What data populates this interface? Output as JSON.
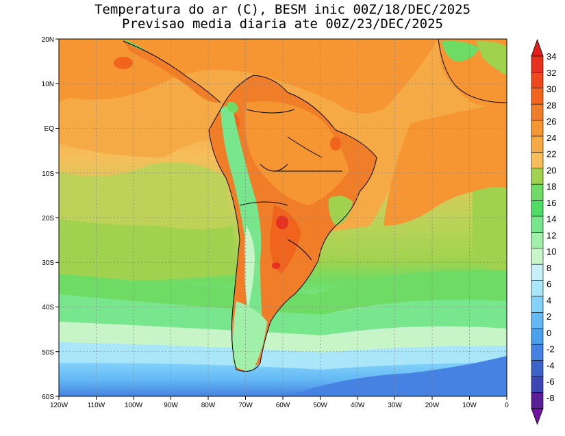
{
  "title_line1": "Temperatura do ar (C), BESM inic 00Z/18/DEC/2025",
  "title_line2": "Previsao media diaria ate 00Z/23/DEC/2025",
  "lon_labels": [
    "120W",
    "110W",
    "100W",
    "90W",
    "80W",
    "70W",
    "60W",
    "50W",
    "40W",
    "30W",
    "20W",
    "10W",
    "0"
  ],
  "lat_labels": [
    "20N",
    "10N",
    "EQ",
    "10S",
    "20S",
    "30S",
    "40S",
    "50S",
    "60S"
  ],
  "colorbar": {
    "labels": [
      "34",
      "32",
      "30",
      "28",
      "26",
      "24",
      "22",
      "20",
      "18",
      "16",
      "14",
      "12",
      "10",
      "8",
      "6",
      "4",
      "2",
      "0",
      "-2",
      "-4",
      "-6",
      "-8"
    ],
    "colors": [
      "#e8301f",
      "#f0481e",
      "#f0641e",
      "#f07d28",
      "#f59632",
      "#f5aa46",
      "#f5be5a",
      "#a0d250",
      "#6edc64",
      "#50dc64",
      "#78e68c",
      "#a0f0aa",
      "#c8f5c8",
      "#c8f0fa",
      "#aae6fa",
      "#82d2fa",
      "#64b9f5",
      "#4ba0eb",
      "#4682e1",
      "#3c64c8",
      "#3c46b4",
      "#5a1e96"
    ],
    "top_arrow_color": "#e01e1e",
    "bottom_arrow_color": "#6e14a0"
  },
  "colors": {
    "warm_ocean": "#f59a3c",
    "mid_ocean": "#f5b25a",
    "cool_green": "#b4d25a",
    "cold_green": "#6edc6e",
    "cold_blue": "#64b4f0",
    "land_hot": "#f07d2d",
    "andes": "#78e678"
  }
}
